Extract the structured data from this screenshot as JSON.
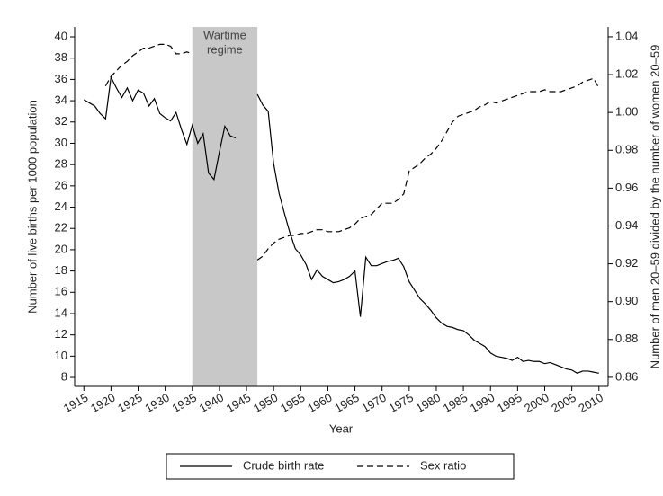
{
  "chart_data": {
    "type": "line",
    "x_label": "Year",
    "y_label": "Number of live births per 1000 population",
    "y2_label": "Number of men 20–59 divided by the number of women 20–59",
    "shaded_region": {
      "x": [
        1935,
        1947
      ],
      "label": [
        "Wartime",
        "regime"
      ],
      "color": "#c8c8c8"
    },
    "x": [
      1915,
      1916,
      1917,
      1918,
      1919,
      1920,
      1921,
      1922,
      1923,
      1924,
      1925,
      1926,
      1927,
      1928,
      1929,
      1930,
      1931,
      1932,
      1933,
      1934,
      1935,
      1936,
      1937,
      1938,
      1939,
      1940,
      1941,
      1942,
      1943,
      1944,
      1945,
      1946,
      1947,
      1948,
      1949,
      1950,
      1951,
      1952,
      1953,
      1954,
      1955,
      1956,
      1957,
      1958,
      1959,
      1960,
      1961,
      1962,
      1963,
      1964,
      1965,
      1966,
      1967,
      1968,
      1969,
      1970,
      1971,
      1972,
      1973,
      1974,
      1975,
      1976,
      1977,
      1978,
      1979,
      1980,
      1981,
      1982,
      1983,
      1984,
      1985,
      1986,
      1987,
      1988,
      1989,
      1990,
      1991,
      1992,
      1993,
      1994,
      1995,
      1996,
      1997,
      1998,
      1999,
      2000,
      2001,
      2002,
      2003,
      2004,
      2005,
      2006,
      2007,
      2008,
      2009,
      2010
    ],
    "series": [
      {
        "name": "Crude birth rate",
        "color": "#000000",
        "dash": "solid",
        "axis": "y",
        "values": [
          34.1,
          33.8,
          33.5,
          32.8,
          32.3,
          36.2,
          35.2,
          34.3,
          35.2,
          34.0,
          35.0,
          34.7,
          33.5,
          34.2,
          32.8,
          32.4,
          32.1,
          32.9,
          31.3,
          29.9,
          31.7,
          30.0,
          30.9,
          27.2,
          26.6,
          29.2,
          31.6,
          30.7,
          30.5,
          null,
          null,
          null,
          34.6,
          33.6,
          33.0,
          28.1,
          25.3,
          23.4,
          21.6,
          20.1,
          19.5,
          18.6,
          17.2,
          18.1,
          17.5,
          17.2,
          16.9,
          17.0,
          17.2,
          17.5,
          18.0,
          13.7,
          19.3,
          18.5,
          18.5,
          18.7,
          18.9,
          19.0,
          19.2,
          18.4,
          17.0,
          16.2,
          15.4,
          14.9,
          14.3,
          13.6,
          13.1,
          12.8,
          12.7,
          12.5,
          12.4,
          12.0,
          11.5,
          11.2,
          10.9,
          10.3,
          10.0,
          9.9,
          9.8,
          9.6,
          9.9,
          9.5,
          9.6,
          9.5,
          9.5,
          9.3,
          9.4,
          9.2,
          9.0,
          8.8,
          8.7,
          8.4,
          8.6,
          8.6,
          8.5,
          8.4
        ]
      },
      {
        "name": "Sex ratio",
        "color": "#000000",
        "dash": "dashed",
        "axis": "y2",
        "values": [
          null,
          null,
          null,
          null,
          1.014,
          1.019,
          1.022,
          1.025,
          1.027,
          1.03,
          1.032,
          1.034,
          1.034,
          1.035,
          1.036,
          1.036,
          1.035,
          1.031,
          1.031,
          1.032,
          1.031,
          null,
          null,
          null,
          null,
          null,
          null,
          null,
          null,
          null,
          null,
          null,
          0.922,
          0.924,
          0.928,
          0.931,
          0.933,
          0.934,
          0.935,
          0.935,
          0.936,
          0.936,
          0.937,
          0.938,
          0.938,
          0.937,
          0.937,
          0.937,
          0.938,
          0.939,
          0.941,
          0.944,
          0.945,
          0.946,
          0.949,
          0.952,
          0.952,
          0.952,
          0.954,
          0.957,
          0.969,
          0.971,
          0.973,
          0.976,
          0.978,
          0.981,
          0.985,
          0.99,
          0.995,
          0.998,
          0.999,
          1.0,
          1.001,
          1.003,
          1.004,
          1.006,
          1.005,
          1.006,
          1.007,
          1.008,
          1.009,
          1.01,
          1.011,
          1.011,
          1.011,
          1.012,
          1.011,
          1.011,
          1.011,
          1.012,
          1.013,
          1.014,
          1.016,
          1.017,
          1.018,
          1.013
        ]
      }
    ],
    "xlim": [
      1913.3,
      2011.7
    ],
    "xticks": [
      1915,
      1920,
      1925,
      1930,
      1935,
      1940,
      1945,
      1950,
      1955,
      1960,
      1965,
      1970,
      1975,
      1980,
      1985,
      1990,
      1995,
      2000,
      2005,
      2010
    ],
    "ylim": [
      7.16,
      40.93
    ],
    "yticks": [
      8,
      10,
      12,
      14,
      16,
      18,
      20,
      22,
      24,
      26,
      28,
      30,
      32,
      34,
      36,
      38,
      40
    ],
    "y2lim": [
      0.8552,
      1.0452
    ],
    "y2ticks": [
      {
        "value": 0.86,
        "label": "0.86"
      },
      {
        "value": 0.88,
        "label": "0.88"
      },
      {
        "value": 0.9,
        "label": "0.90"
      },
      {
        "value": 0.92,
        "label": "0.92"
      },
      {
        "value": 0.94,
        "label": "0.94"
      },
      {
        "value": 0.96,
        "label": "0.96"
      },
      {
        "value": 0.98,
        "label": "0.98"
      },
      {
        "value": 1.0,
        "label": "1.00"
      },
      {
        "value": 1.02,
        "label": "1.02"
      },
      {
        "value": 1.04,
        "label": "1.04"
      }
    ],
    "legend": "bottom"
  }
}
